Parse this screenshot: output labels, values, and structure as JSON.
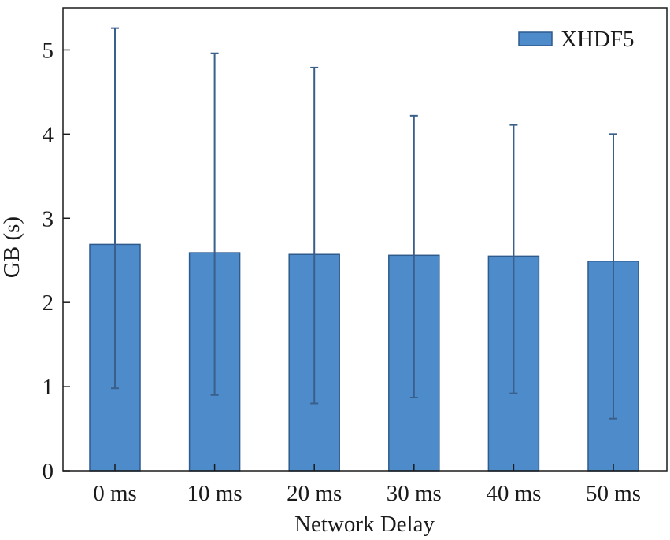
{
  "chart_data": {
    "type": "bar",
    "title": "",
    "xlabel": "Network Delay",
    "ylabel": "GB (s)",
    "categories": [
      "0 ms",
      "10 ms",
      "20 ms",
      "30 ms",
      "40 ms",
      "50 ms"
    ],
    "series": [
      {
        "name": "XHDF5",
        "values": [
          2.69,
          2.59,
          2.57,
          2.56,
          2.55,
          2.49
        ],
        "error_low": [
          0.98,
          0.9,
          0.8,
          0.87,
          0.92,
          0.62
        ],
        "error_high": [
          5.26,
          4.96,
          4.79,
          4.22,
          4.11,
          4.0
        ]
      }
    ],
    "ylim": [
      0,
      5.5
    ],
    "yticks": [
      0,
      1,
      2,
      3,
      4,
      5
    ],
    "grid": false,
    "legend_position": "top-right",
    "colors": {
      "bar_fill": "#4d8bcb",
      "bar_stroke": "#2e5a8c",
      "error_bar": "#3a5f8a",
      "axis": "#1a1a1a"
    }
  }
}
